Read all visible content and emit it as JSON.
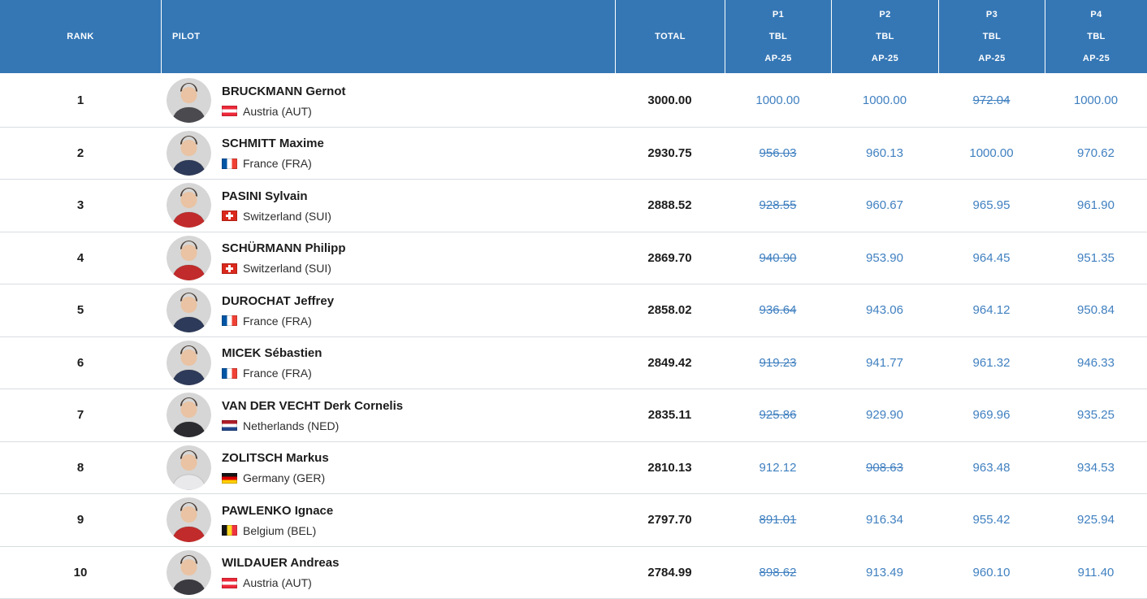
{
  "colors": {
    "header_bg": "#3577b5",
    "header_text": "#ffffff",
    "score_link": "#4080c0",
    "row_border": "#d9dde1",
    "name_color": "#1c1c1c",
    "country_color": "#2d2d2d"
  },
  "table": {
    "columns": {
      "rank": "RANK",
      "pilot": "PILOT",
      "total": "TOTAL",
      "rounds": [
        {
          "line1": "P1",
          "line2": "TBL",
          "line3": "AP-25"
        },
        {
          "line1": "P2",
          "line2": "TBL",
          "line3": "AP-25"
        },
        {
          "line1": "P3",
          "line2": "TBL",
          "line3": "AP-25"
        },
        {
          "line1": "P4",
          "line2": "TBL",
          "line3": "AP-25"
        }
      ]
    },
    "pilots": [
      {
        "rank": "1",
        "name": "BRUCKMANN Gernot",
        "country": "Austria (AUT)",
        "flag": "AUT",
        "avatar_shirt": "#4a4a4f",
        "total": "3000.00",
        "scores": [
          {
            "value": "1000.00",
            "struck": false
          },
          {
            "value": "1000.00",
            "struck": false
          },
          {
            "value": "972.04",
            "struck": true
          },
          {
            "value": "1000.00",
            "struck": false
          }
        ]
      },
      {
        "rank": "2",
        "name": "SCHMITT Maxime",
        "country": "France (FRA)",
        "flag": "FRA",
        "avatar_shirt": "#2e3a59",
        "total": "2930.75",
        "scores": [
          {
            "value": "956.03",
            "struck": true
          },
          {
            "value": "960.13",
            "struck": false
          },
          {
            "value": "1000.00",
            "struck": false
          },
          {
            "value": "970.62",
            "struck": false
          }
        ]
      },
      {
        "rank": "3",
        "name": "PASINI Sylvain",
        "country": "Switzerland (SUI)",
        "flag": "SUI",
        "avatar_shirt": "#c22b2b",
        "total": "2888.52",
        "scores": [
          {
            "value": "928.55",
            "struck": true
          },
          {
            "value": "960.67",
            "struck": false
          },
          {
            "value": "965.95",
            "struck": false
          },
          {
            "value": "961.90",
            "struck": false
          }
        ]
      },
      {
        "rank": "4",
        "name": "SCHÜRMANN Philipp",
        "country": "Switzerland (SUI)",
        "flag": "SUI",
        "avatar_shirt": "#c22b2b",
        "total": "2869.70",
        "scores": [
          {
            "value": "940.90",
            "struck": true
          },
          {
            "value": "953.90",
            "struck": false
          },
          {
            "value": "964.45",
            "struck": false
          },
          {
            "value": "951.35",
            "struck": false
          }
        ]
      },
      {
        "rank": "5",
        "name": "DUROCHAT Jeffrey",
        "country": "France (FRA)",
        "flag": "FRA",
        "avatar_shirt": "#2e3a59",
        "total": "2858.02",
        "scores": [
          {
            "value": "936.64",
            "struck": true
          },
          {
            "value": "943.06",
            "struck": false
          },
          {
            "value": "964.12",
            "struck": false
          },
          {
            "value": "950.84",
            "struck": false
          }
        ]
      },
      {
        "rank": "6",
        "name": "MICEK Sébastien",
        "country": "France (FRA)",
        "flag": "FRA",
        "avatar_shirt": "#2e3a59",
        "total": "2849.42",
        "scores": [
          {
            "value": "919.23",
            "struck": true
          },
          {
            "value": "941.77",
            "struck": false
          },
          {
            "value": "961.32",
            "struck": false
          },
          {
            "value": "946.33",
            "struck": false
          }
        ]
      },
      {
        "rank": "7",
        "name": "VAN DER VECHT Derk Cornelis",
        "country": "Netherlands (NED)",
        "flag": "NED",
        "avatar_shirt": "#2b2b30",
        "total": "2835.11",
        "scores": [
          {
            "value": "925.86",
            "struck": true
          },
          {
            "value": "929.90",
            "struck": false
          },
          {
            "value": "969.96",
            "struck": false
          },
          {
            "value": "935.25",
            "struck": false
          }
        ]
      },
      {
        "rank": "8",
        "name": "ZOLITSCH Markus",
        "country": "Germany (GER)",
        "flag": "GER",
        "avatar_shirt": "#e9e9ec",
        "total": "2810.13",
        "scores": [
          {
            "value": "912.12",
            "struck": false
          },
          {
            "value": "908.63",
            "struck": true
          },
          {
            "value": "963.48",
            "struck": false
          },
          {
            "value": "934.53",
            "struck": false
          }
        ]
      },
      {
        "rank": "9",
        "name": "PAWLENKO Ignace",
        "country": "Belgium (BEL)",
        "flag": "BEL",
        "avatar_shirt": "#c22b2b",
        "total": "2797.70",
        "scores": [
          {
            "value": "891.01",
            "struck": true
          },
          {
            "value": "916.34",
            "struck": false
          },
          {
            "value": "955.42",
            "struck": false
          },
          {
            "value": "925.94",
            "struck": false
          }
        ]
      },
      {
        "rank": "10",
        "name": "WILDAUER Andreas",
        "country": "Austria (AUT)",
        "flag": "AUT",
        "avatar_shirt": "#3a3a40",
        "total": "2784.99",
        "scores": [
          {
            "value": "898.62",
            "struck": true
          },
          {
            "value": "913.49",
            "struck": false
          },
          {
            "value": "960.10",
            "struck": false
          },
          {
            "value": "911.40",
            "struck": false
          }
        ]
      }
    ]
  }
}
